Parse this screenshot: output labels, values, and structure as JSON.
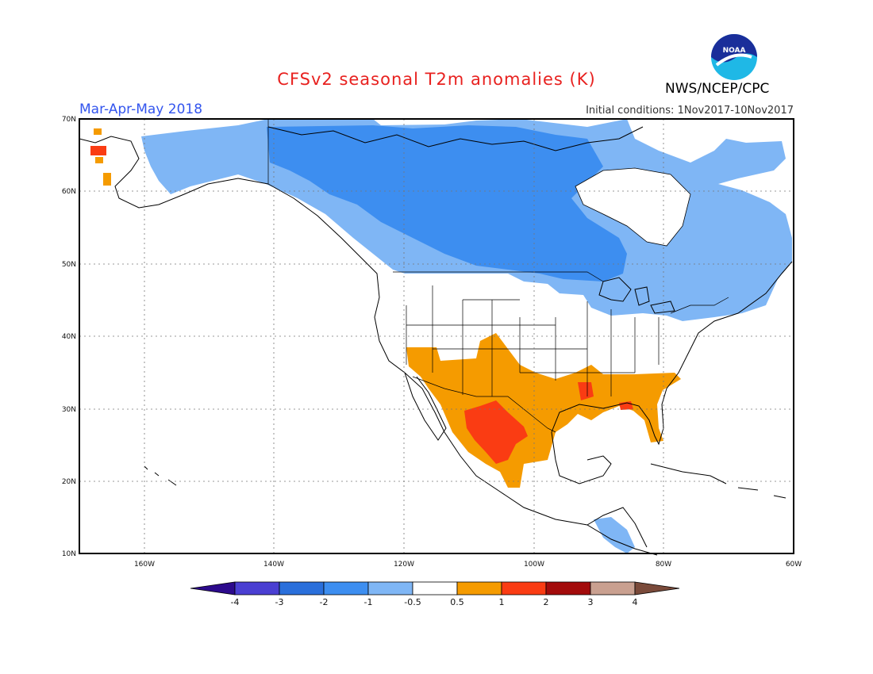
{
  "header": {
    "title": "CFSv2 seasonal T2m anomalies (K)",
    "period": "Mar-Apr-May 2018",
    "initial_conditions": "Initial conditions: 1Nov2017-10Nov2017",
    "agency": "NWS/NCEP/CPC",
    "logo_text": "NOAA"
  },
  "map": {
    "lat_labels": [
      "70N",
      "60N",
      "50N",
      "40N",
      "30N",
      "20N",
      "10N"
    ],
    "lon_labels": [
      "160W",
      "140W",
      "120W",
      "100W",
      "80W",
      "60W"
    ],
    "extent": {
      "lon": [
        -170,
        -60
      ],
      "lat": [
        10,
        70
      ]
    }
  },
  "colorbar": {
    "ticks": [
      "-4",
      "-3",
      "-2",
      "-1",
      "-0.5",
      "0.5",
      "1",
      "2",
      "3",
      "4"
    ],
    "colors": [
      "#2c0a8c",
      "#4a3fd2",
      "#2a6fdb",
      "#3d8ef0",
      "#7fb6f5",
      "#ffffff",
      "#f59b00",
      "#fa3c13",
      "#a30b0b",
      "#c9a090",
      "#7a4a3a"
    ]
  }
}
